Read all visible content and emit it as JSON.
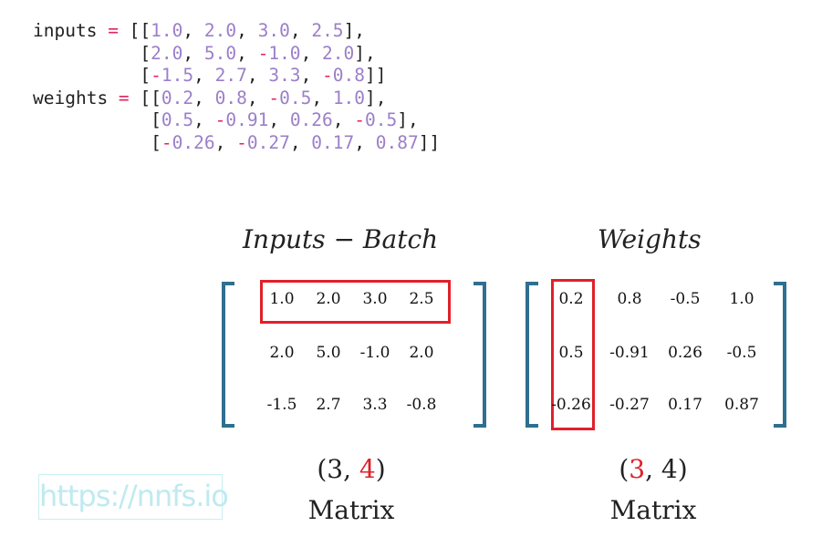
{
  "code": {
    "inputs_name": "inputs",
    "weights_name": "weights",
    "assign": "=",
    "inputs_rows": [
      [
        "1.0",
        "2.0",
        "3.0",
        "2.5"
      ],
      [
        "2.0",
        "5.0",
        "-1.0",
        "2.0"
      ],
      [
        "-1.5",
        "2.7",
        "3.3",
        "-0.8"
      ]
    ],
    "weights_rows": [
      [
        "0.2",
        "0.8",
        "-0.5",
        "1.0"
      ],
      [
        "0.5",
        "-0.91",
        "0.26",
        "-0.5"
      ],
      [
        "-0.26",
        "-0.27",
        "0.17",
        "0.87"
      ]
    ]
  },
  "inputs_matrix": {
    "title": "Inputs − Batch",
    "rows": [
      [
        "1.0",
        "2.0",
        "3.0",
        "2.5"
      ],
      [
        "2.0",
        "5.0",
        "-1.0",
        "2.0"
      ],
      [
        "-1.5",
        "2.7",
        "3.3",
        "-0.8"
      ]
    ],
    "shape_open": "(3, ",
    "shape_highlight": "4",
    "shape_close": ")",
    "label": "Matrix",
    "highlight": "row-0"
  },
  "weights_matrix": {
    "title": "Weights",
    "rows": [
      [
        "0.2",
        "0.8",
        "-0.5",
        "1.0"
      ],
      [
        "0.5",
        "-0.91",
        "0.26",
        "-0.5"
      ],
      [
        "-0.26",
        "-0.27",
        "0.17",
        "0.87"
      ]
    ],
    "shape_open": "(",
    "shape_highlight": "3",
    "shape_close": ", 4)",
    "label": "Matrix",
    "highlight": "column-0"
  },
  "watermark": "https://nnfs.io",
  "colors": {
    "highlight": "#e0202a",
    "bracket": "#2f6f8f",
    "code_number": "#9b7fc9",
    "code_operator": "#e0245e"
  }
}
